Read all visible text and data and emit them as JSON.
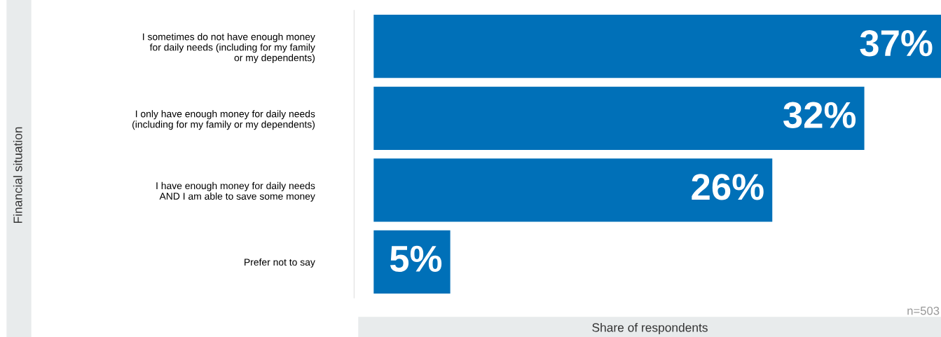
{
  "chart_data": {
    "type": "bar",
    "orientation": "horizontal",
    "categories": [
      "I sometimes do not have enough money\nfor daily needs (including for my family\nor my dependents)",
      "I only have enough money for daily needs\n(including for my family or my dependents)",
      "I have enough money for daily needs\nAND I am able to save some money",
      "Prefer not to say"
    ],
    "values": [
      37,
      32,
      26,
      5
    ],
    "color": "#0070b8",
    "value_labels": [
      "37%",
      "32%",
      "26%",
      "5%"
    ],
    "xlim": [
      0,
      37
    ],
    "xlabel": "Share of respondents",
    "annotations": [
      "Financial situation",
      "n=503"
    ],
    "grid": false,
    "legend": false
  }
}
